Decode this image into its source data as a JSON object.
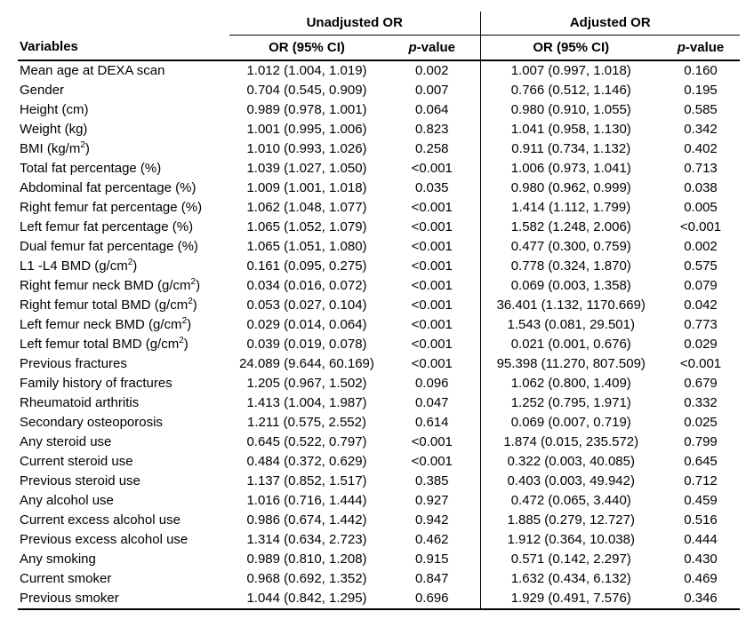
{
  "colors": {
    "background": "#ffffff",
    "text": "#000000",
    "rules": "#000000"
  },
  "table": {
    "group_headers": {
      "unadjusted": "Unadjusted OR",
      "adjusted": "Adjusted OR"
    },
    "column_headers": {
      "variables": "Variables",
      "or_ci": "OR (95% CI)",
      "p_italic": "p",
      "p_rest": "-value"
    },
    "rows": [
      {
        "var_pre": "Mean age at DEXA scan",
        "var_sup": "",
        "var_post": "",
        "unadj_or": "1.012 (1.004, 1.019)",
        "unadj_p": "0.002",
        "adj_or": "1.007 (0.997, 1.018)",
        "adj_p": "0.160"
      },
      {
        "var_pre": "Gender",
        "var_sup": "",
        "var_post": "",
        "unadj_or": "0.704 (0.545, 0.909)",
        "unadj_p": "0.007",
        "adj_or": "0.766 (0.512, 1.146)",
        "adj_p": "0.195"
      },
      {
        "var_pre": "Height (cm)",
        "var_sup": "",
        "var_post": "",
        "unadj_or": "0.989 (0.978, 1.001)",
        "unadj_p": "0.064",
        "adj_or": "0.980 (0.910, 1.055)",
        "adj_p": "0.585"
      },
      {
        "var_pre": "Weight (kg)",
        "var_sup": "",
        "var_post": "",
        "unadj_or": "1.001 (0.995, 1.006)",
        "unadj_p": "0.823",
        "adj_or": "1.041 (0.958, 1.130)",
        "adj_p": "0.342"
      },
      {
        "var_pre": "BMI (kg/m",
        "var_sup": "2",
        "var_post": ")",
        "unadj_or": "1.010 (0.993, 1.026)",
        "unadj_p": "0.258",
        "adj_or": "0.911 (0.734, 1.132)",
        "adj_p": "0.402"
      },
      {
        "var_pre": "Total fat percentage (%)",
        "var_sup": "",
        "var_post": "",
        "unadj_or": "1.039 (1.027, 1.050)",
        "unadj_p": "<0.001",
        "adj_or": "1.006 (0.973, 1.041)",
        "adj_p": "0.713"
      },
      {
        "var_pre": "Abdominal fat percentage (%)",
        "var_sup": "",
        "var_post": "",
        "unadj_or": "1.009 (1.001, 1.018)",
        "unadj_p": "0.035",
        "adj_or": "0.980 (0.962, 0.999)",
        "adj_p": "0.038"
      },
      {
        "var_pre": "Right femur fat percentage (%)",
        "var_sup": "",
        "var_post": "",
        "unadj_or": "1.062 (1.048, 1.077)",
        "unadj_p": "<0.001",
        "adj_or": "1.414 (1.112, 1.799)",
        "adj_p": "0.005"
      },
      {
        "var_pre": "Left femur fat percentage (%)",
        "var_sup": "",
        "var_post": "",
        "unadj_or": "1.065 (1.052, 1.079)",
        "unadj_p": "<0.001",
        "adj_or": "1.582 (1.248, 2.006)",
        "adj_p": "<0.001"
      },
      {
        "var_pre": "Dual femur fat percentage (%)",
        "var_sup": "",
        "var_post": "",
        "unadj_or": "1.065 (1.051, 1.080)",
        "unadj_p": "<0.001",
        "adj_or": "0.477 (0.300, 0.759)",
        "adj_p": "0.002"
      },
      {
        "var_pre": "L1 -L4 BMD (g/cm",
        "var_sup": "2",
        "var_post": ")",
        "unadj_or": "0.161 (0.095, 0.275)",
        "unadj_p": "<0.001",
        "adj_or": "0.778 (0.324, 1.870)",
        "adj_p": "0.575"
      },
      {
        "var_pre": "Right femur neck BMD (g/cm",
        "var_sup": "2",
        "var_post": ")",
        "unadj_or": "0.034 (0.016, 0.072)",
        "unadj_p": "<0.001",
        "adj_or": "0.069 (0.003, 1.358)",
        "adj_p": "0.079"
      },
      {
        "var_pre": "Right femur total BMD (g/cm",
        "var_sup": "2",
        "var_post": ")",
        "unadj_or": "0.053 (0.027, 0.104)",
        "unadj_p": "<0.001",
        "adj_or": "36.401 (1.132, 1170.669)",
        "adj_p": "0.042"
      },
      {
        "var_pre": "Left femur neck BMD (g/cm",
        "var_sup": "2",
        "var_post": ")",
        "unadj_or": "0.029 (0.014, 0.064)",
        "unadj_p": "<0.001",
        "adj_or": "1.543 (0.081, 29.501)",
        "adj_p": "0.773"
      },
      {
        "var_pre": "Left femur total BMD (g/cm",
        "var_sup": "2",
        "var_post": ")",
        "unadj_or": "0.039 (0.019, 0.078)",
        "unadj_p": "<0.001",
        "adj_or": "0.021 (0.001, 0.676)",
        "adj_p": "0.029"
      },
      {
        "var_pre": "Previous fractures",
        "var_sup": "",
        "var_post": "",
        "unadj_or": "24.089 (9.644, 60.169)",
        "unadj_p": "<0.001",
        "adj_or": "95.398 (11.270, 807.509)",
        "adj_p": "<0.001"
      },
      {
        "var_pre": "Family history of fractures",
        "var_sup": "",
        "var_post": "",
        "unadj_or": "1.205 (0.967, 1.502)",
        "unadj_p": "0.096",
        "adj_or": "1.062 (0.800, 1.409)",
        "adj_p": "0.679"
      },
      {
        "var_pre": "Rheumatoid arthritis",
        "var_sup": "",
        "var_post": "",
        "unadj_or": "1.413 (1.004, 1.987)",
        "unadj_p": "0.047",
        "adj_or": "1.252 (0.795, 1.971)",
        "adj_p": "0.332"
      },
      {
        "var_pre": "Secondary osteoporosis",
        "var_sup": "",
        "var_post": "",
        "unadj_or": "1.211 (0.575, 2.552)",
        "unadj_p": "0.614",
        "adj_or": "0.069 (0.007, 0.719)",
        "adj_p": "0.025"
      },
      {
        "var_pre": "Any steroid use",
        "var_sup": "",
        "var_post": "",
        "unadj_or": "0.645 (0.522, 0.797)",
        "unadj_p": "<0.001",
        "adj_or": "1.874 (0.015, 235.572)",
        "adj_p": "0.799"
      },
      {
        "var_pre": "Current steroid use",
        "var_sup": "",
        "var_post": "",
        "unadj_or": "0.484 (0.372, 0.629)",
        "unadj_p": "<0.001",
        "adj_or": "0.322 (0.003, 40.085)",
        "adj_p": "0.645"
      },
      {
        "var_pre": "Previous steroid use",
        "var_sup": "",
        "var_post": "",
        "unadj_or": "1.137 (0.852, 1.517)",
        "unadj_p": "0.385",
        "adj_or": "0.403 (0.003, 49.942)",
        "adj_p": "0.712"
      },
      {
        "var_pre": "Any alcohol use",
        "var_sup": "",
        "var_post": "",
        "unadj_or": "1.016 (0.716, 1.444)",
        "unadj_p": "0.927",
        "adj_or": "0.472 (0.065, 3.440)",
        "adj_p": "0.459"
      },
      {
        "var_pre": "Current excess alcohol use",
        "var_sup": "",
        "var_post": "",
        "unadj_or": "0.986 (0.674, 1.442)",
        "unadj_p": "0.942",
        "adj_or": "1.885 (0.279, 12.727)",
        "adj_p": "0.516"
      },
      {
        "var_pre": "Previous excess alcohol use",
        "var_sup": "",
        "var_post": "",
        "unadj_or": "1.314 (0.634, 2.723)",
        "unadj_p": "0.462",
        "adj_or": "1.912 (0.364, 10.038)",
        "adj_p": "0.444"
      },
      {
        "var_pre": "Any smoking",
        "var_sup": "",
        "var_post": "",
        "unadj_or": "0.989 (0.810, 1.208)",
        "unadj_p": "0.915",
        "adj_or": "0.571 (0.142, 2.297)",
        "adj_p": "0.430"
      },
      {
        "var_pre": "Current smoker",
        "var_sup": "",
        "var_post": "",
        "unadj_or": "0.968 (0.692, 1.352)",
        "unadj_p": "0.847",
        "adj_or": "1.632 (0.434, 6.132)",
        "adj_p": "0.469"
      },
      {
        "var_pre": "Previous smoker",
        "var_sup": "",
        "var_post": "",
        "unadj_or": "1.044 (0.842, 1.295)",
        "unadj_p": "0.696",
        "adj_or": "1.929 (0.491, 7.576)",
        "adj_p": "0.346"
      }
    ]
  }
}
